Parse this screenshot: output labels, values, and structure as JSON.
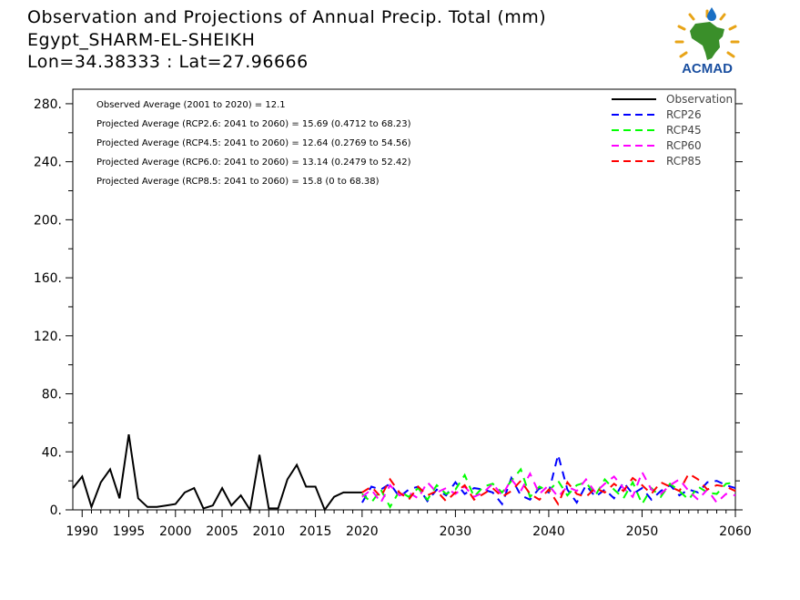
{
  "header": {
    "title": "Observation and Projections of Annual Precip. Total (mm)",
    "location": "Egypt_SHARM-EL-SHEIKH",
    "coords": "Lon=34.38333 : Lat=27.96666"
  },
  "logo": {
    "text": "ACMAD",
    "icon": "africa-map-sun-logo"
  },
  "colors": {
    "Observation": "#000000",
    "RCP26": "#0000ff",
    "RCP45": "#00ff00",
    "RCP60": "#ff00ff",
    "RCP85": "#ff0000"
  },
  "chart_data": {
    "type": "line",
    "xlim": [
      1989,
      2060
    ],
    "ylim": [
      0,
      290
    ],
    "xticks": [
      1990,
      1995,
      2000,
      2005,
      2010,
      2015,
      2020,
      2030,
      2040,
      2050,
      2060
    ],
    "yticks": [
      0,
      40,
      80,
      120,
      160,
      200,
      240,
      280
    ],
    "ytick_labels": [
      "0.",
      "40.",
      "80.",
      "120.",
      "160.",
      "200.",
      "240.",
      "280."
    ],
    "annotations": [
      "Observed Average (2001 to 2020) = 12.1",
      "Projected Average (RCP2.6: 2041 to 2060) = 15.69 (0.4712 to 68.23)",
      "Projected Average (RCP4.5: 2041 to 2060) = 12.64 (0.2769 to 54.56)",
      "Projected Average (RCP6.0: 2041 to 2060) = 13.14 (0.2479 to 52.42)",
      "Projected Average (RCP8.5: 2041 to 2060) = 15.8 (0 to 68.38)"
    ],
    "legend": [
      "Observation",
      "RCP26",
      "RCP45",
      "RCP60",
      "RCP85"
    ],
    "series": [
      {
        "name": "Observation",
        "dashed": false,
        "x": [
          1989,
          1990,
          1991,
          1992,
          1993,
          1994,
          1995,
          1996,
          1997,
          1998,
          1999,
          2000,
          2001,
          2002,
          2003,
          2004,
          2005,
          2006,
          2007,
          2008,
          2009,
          2010,
          2011,
          2012,
          2013,
          2014,
          2015,
          2016,
          2017,
          2018,
          2019,
          2020
        ],
        "y": [
          15,
          23,
          2,
          19,
          28,
          8,
          52,
          8,
          2,
          2,
          3,
          4,
          12,
          15,
          1,
          3,
          15,
          3,
          10,
          0,
          38,
          1,
          1,
          21,
          31,
          16,
          16,
          0,
          9,
          12,
          12,
          12
        ]
      },
      {
        "name": "RCP26",
        "dashed": true,
        "x": [
          2020,
          2021,
          2022,
          2023,
          2024,
          2025,
          2026,
          2027,
          2028,
          2029,
          2030,
          2031,
          2032,
          2033,
          2034,
          2035,
          2036,
          2037,
          2038,
          2039,
          2040,
          2041,
          2042,
          2043,
          2044,
          2045,
          2046,
          2047,
          2048,
          2049,
          2050,
          2051,
          2052,
          2053,
          2054,
          2055,
          2056,
          2057,
          2058,
          2059,
          2060
        ],
        "y": [
          5,
          16,
          14,
          18,
          9,
          14,
          16,
          6,
          14,
          10,
          19,
          11,
          15,
          14,
          12,
          4,
          22,
          10,
          7,
          15,
          12,
          38,
          14,
          5,
          17,
          9,
          14,
          8,
          19,
          11,
          15,
          7,
          13,
          17,
          10,
          14,
          12,
          19,
          20,
          17,
          15
        ]
      },
      {
        "name": "RCP45",
        "dashed": true,
        "x": [
          2020,
          2021,
          2022,
          2023,
          2024,
          2025,
          2026,
          2027,
          2028,
          2029,
          2030,
          2031,
          2032,
          2033,
          2034,
          2035,
          2036,
          2037,
          2038,
          2039,
          2040,
          2041,
          2042,
          2043,
          2044,
          2045,
          2046,
          2047,
          2048,
          2049,
          2050,
          2051,
          2052,
          2053,
          2054,
          2055,
          2056,
          2057,
          2058,
          2059,
          2060
        ],
        "y": [
          11,
          5,
          14,
          2,
          13,
          9,
          15,
          7,
          17,
          11,
          14,
          24,
          9,
          16,
          18,
          12,
          20,
          28,
          9,
          16,
          13,
          20,
          10,
          17,
          19,
          10,
          21,
          14,
          8,
          19,
          4,
          15,
          9,
          18,
          13,
          7,
          16,
          12,
          11,
          18,
          19
        ]
      },
      {
        "name": "RCP60",
        "dashed": true,
        "x": [
          2020,
          2021,
          2022,
          2023,
          2024,
          2025,
          2026,
          2027,
          2028,
          2029,
          2030,
          2031,
          2032,
          2033,
          2034,
          2035,
          2036,
          2037,
          2038,
          2039,
          2040,
          2041,
          2042,
          2043,
          2044,
          2045,
          2046,
          2047,
          2048,
          2049,
          2050,
          2051,
          2052,
          2053,
          2054,
          2055,
          2056,
          2057,
          2058,
          2059,
          2060
        ],
        "y": [
          9,
          14,
          5,
          17,
          10,
          12,
          8,
          19,
          12,
          15,
          11,
          16,
          9,
          12,
          18,
          10,
          21,
          13,
          25,
          11,
          17,
          9,
          16,
          13,
          21,
          12,
          18,
          23,
          15,
          9,
          26,
          14,
          11,
          17,
          21,
          13,
          7,
          14,
          5,
          11,
          10
        ]
      },
      {
        "name": "RCP85",
        "dashed": true,
        "x": [
          2020,
          2021,
          2022,
          2023,
          2024,
          2025,
          2026,
          2027,
          2028,
          2029,
          2030,
          2031,
          2032,
          2033,
          2034,
          2035,
          2036,
          2037,
          2038,
          2039,
          2040,
          2041,
          2042,
          2043,
          2044,
          2045,
          2046,
          2047,
          2048,
          2049,
          2050,
          2051,
          2052,
          2053,
          2054,
          2055,
          2056,
          2057,
          2058,
          2059,
          2060
        ],
        "y": [
          12,
          16,
          9,
          21,
          12,
          7,
          16,
          10,
          13,
          6,
          12,
          17,
          7,
          11,
          15,
          9,
          13,
          20,
          11,
          7,
          14,
          4,
          19,
          11,
          9,
          15,
          12,
          18,
          13,
          22,
          17,
          11,
          19,
          16,
          13,
          25,
          21,
          14,
          17,
          16,
          13
        ]
      }
    ]
  }
}
